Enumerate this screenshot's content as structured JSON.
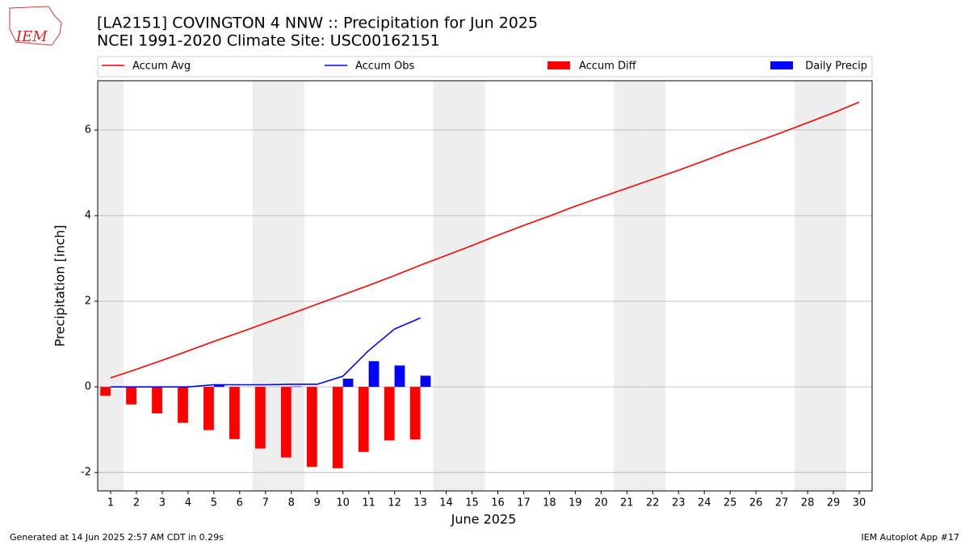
{
  "logo": "IEM",
  "footer_left": "Generated at 14 Jun 2025 2:57 AM CDT in 0.29s",
  "footer_right": "IEM Autoplot App #17",
  "chart_data": {
    "type": "bar_line",
    "title": "[LA2151] COVINGTON 4 NNW :: Precipitation for Jun 2025",
    "subtitle": "NCEI 1991-2020 Climate Site: USC00162151",
    "x_label": "June 2025",
    "y_label": "Precipitation [inch]",
    "x": [
      1,
      2,
      3,
      4,
      5,
      6,
      7,
      8,
      9,
      10,
      11,
      12,
      13,
      14,
      15,
      16,
      17,
      18,
      19,
      20,
      21,
      22,
      23,
      24,
      25,
      26,
      27,
      28,
      29,
      30
    ],
    "xlim": [
      0.5,
      30.5
    ],
    "xticks": [
      1,
      2,
      3,
      4,
      5,
      6,
      7,
      8,
      9,
      10,
      11,
      12,
      13,
      14,
      15,
      16,
      17,
      18,
      19,
      20,
      21,
      22,
      23,
      24,
      25,
      26,
      27,
      28,
      29,
      30
    ],
    "ylim": [
      -2.43,
      7.15
    ],
    "yticks": [
      -2,
      0,
      2,
      4,
      6
    ],
    "grid": true,
    "weekend_days": [
      1,
      7,
      8,
      14,
      15,
      21,
      22,
      28,
      29
    ],
    "series": [
      {
        "name": "Accum Avg",
        "kind": "line",
        "color": "#ff0000",
        "values": [
          0.21,
          0.41,
          0.62,
          0.84,
          1.06,
          1.27,
          1.49,
          1.71,
          1.93,
          2.15,
          2.37,
          2.6,
          2.84,
          3.07,
          3.3,
          3.54,
          3.77,
          3.99,
          4.22,
          4.43,
          4.64,
          4.85,
          5.06,
          5.28,
          5.51,
          5.72,
          5.94,
          6.17,
          6.4,
          6.65
        ]
      },
      {
        "name": "Accum Obs",
        "kind": "line",
        "color": "#0000ff",
        "values": [
          0,
          0,
          0,
          0,
          0.05,
          0.05,
          0.05,
          0.06,
          0.06,
          0.25,
          0.85,
          1.35,
          1.61,
          null,
          null,
          null,
          null,
          null,
          null,
          null,
          null,
          null,
          null,
          null,
          null,
          null,
          null,
          null,
          null,
          null
        ]
      },
      {
        "name": "Accum Diff",
        "kind": "bar",
        "offset": -1,
        "color": "#ff0000",
        "values": [
          -0.21,
          -0.41,
          -0.62,
          -0.84,
          -1.01,
          -1.22,
          -1.44,
          -1.65,
          -1.87,
          -1.9,
          -1.52,
          -1.25,
          -1.23,
          null,
          null,
          null,
          null,
          null,
          null,
          null,
          null,
          null,
          null,
          null,
          null,
          null,
          null,
          null,
          null,
          null
        ]
      },
      {
        "name": "Daily Precip",
        "kind": "bar",
        "offset": 0,
        "color": "#0000ff",
        "values": [
          0,
          0,
          0,
          0,
          0.05,
          0,
          0,
          0.01,
          0,
          0.19,
          0.6,
          0.5,
          0.26,
          null,
          null,
          null,
          null,
          null,
          null,
          null,
          null,
          null,
          null,
          null,
          null,
          null,
          null,
          null,
          null,
          null
        ]
      }
    ]
  }
}
